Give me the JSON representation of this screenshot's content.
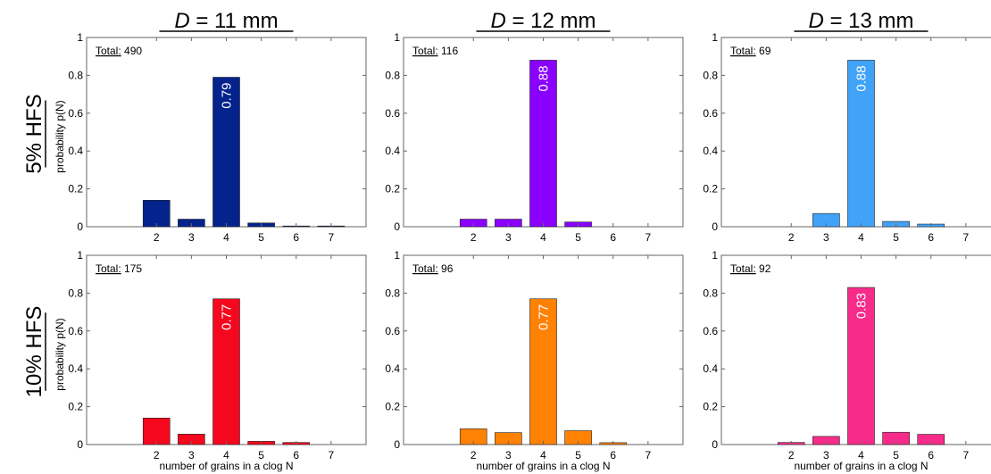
{
  "figure": {
    "columns": [
      {
        "italic": "D",
        "rest": " = 11 mm"
      },
      {
        "italic": "D",
        "rest": " = 12 mm"
      },
      {
        "italic": "D",
        "rest": " = 13 mm"
      }
    ],
    "rows": [
      "5% HFS",
      "10% HFS"
    ],
    "total_prefix": "Total:"
  },
  "chart_data": [
    {
      "type": "bar",
      "row": 0,
      "col": 0,
      "color": "#04238C",
      "categories": [
        "2",
        "3",
        "4",
        "5",
        "6",
        "7"
      ],
      "values": [
        0.14,
        0.04,
        0.79,
        0.02,
        0.004,
        0.004
      ],
      "total": "490",
      "value_label": "0.79",
      "value_label_index": 2,
      "ylabel": "probability p(N)",
      "xlabel": "",
      "yticks": [
        "0",
        "0.2",
        "0.4",
        "0.6",
        "0.8",
        "1"
      ],
      "ylim": [
        0,
        1
      ],
      "xlim": [
        0,
        8
      ]
    },
    {
      "type": "bar",
      "row": 0,
      "col": 1,
      "color": "#8A00FF",
      "categories": [
        "2",
        "3",
        "4",
        "5",
        "6",
        "7"
      ],
      "values": [
        0.04,
        0.04,
        0.88,
        0.025,
        0,
        0
      ],
      "total": "116",
      "value_label": "0.88",
      "value_label_index": 2,
      "ylabel": "",
      "xlabel": "",
      "yticks": [
        "0",
        "0.2",
        "0.4",
        "0.6",
        "0.8",
        "1"
      ],
      "ylim": [
        0,
        1
      ],
      "xlim": [
        0,
        8
      ]
    },
    {
      "type": "bar",
      "row": 0,
      "col": 2,
      "color": "#41A3F8",
      "categories": [
        "2",
        "3",
        "4",
        "5",
        "6",
        "7"
      ],
      "values": [
        0,
        0.07,
        0.88,
        0.028,
        0.014,
        0
      ],
      "total": "69",
      "value_label": "0.88",
      "value_label_index": 2,
      "ylabel": "",
      "xlabel": "",
      "yticks": [
        "0",
        "0.2",
        "0.4",
        "0.6",
        "0.8",
        "1"
      ],
      "ylim": [
        0,
        1
      ],
      "xlim": [
        0,
        8
      ]
    },
    {
      "type": "bar",
      "row": 1,
      "col": 0,
      "color": "#F5081E",
      "categories": [
        "2",
        "3",
        "4",
        "5",
        "6",
        "7"
      ],
      "values": [
        0.14,
        0.055,
        0.77,
        0.017,
        0.011,
        0
      ],
      "total": "175",
      "value_label": "0.77",
      "value_label_index": 2,
      "ylabel": "probability p(N)",
      "xlabel": "number of grains in a clog N",
      "yticks": [
        "0",
        "0.2",
        "0.4",
        "0.6",
        "0.8",
        "1"
      ],
      "ylim": [
        0,
        1
      ],
      "xlim": [
        0,
        8
      ]
    },
    {
      "type": "bar",
      "row": 1,
      "col": 1,
      "color": "#FF8205",
      "categories": [
        "2",
        "3",
        "4",
        "5",
        "6",
        "7"
      ],
      "values": [
        0.083,
        0.063,
        0.77,
        0.073,
        0.01,
        0
      ],
      "total": "96",
      "value_label": "0.77",
      "value_label_index": 2,
      "ylabel": "",
      "xlabel": "number of grains in a clog N",
      "yticks": [
        "0",
        "0.2",
        "0.4",
        "0.6",
        "0.8",
        "1"
      ],
      "ylim": [
        0,
        1
      ],
      "xlim": [
        0,
        8
      ]
    },
    {
      "type": "bar",
      "row": 1,
      "col": 2,
      "color": "#F72C8A",
      "categories": [
        "2",
        "3",
        "4",
        "5",
        "6",
        "7"
      ],
      "values": [
        0.011,
        0.043,
        0.83,
        0.065,
        0.054,
        0
      ],
      "total": "92",
      "value_label": "0.83",
      "value_label_index": 2,
      "ylabel": "",
      "xlabel": "number of grains in a clog N",
      "yticks": [
        "0",
        "0.2",
        "0.4",
        "0.6",
        "0.8",
        "1"
      ],
      "ylim": [
        0,
        1
      ],
      "xlim": [
        0,
        8
      ]
    }
  ]
}
